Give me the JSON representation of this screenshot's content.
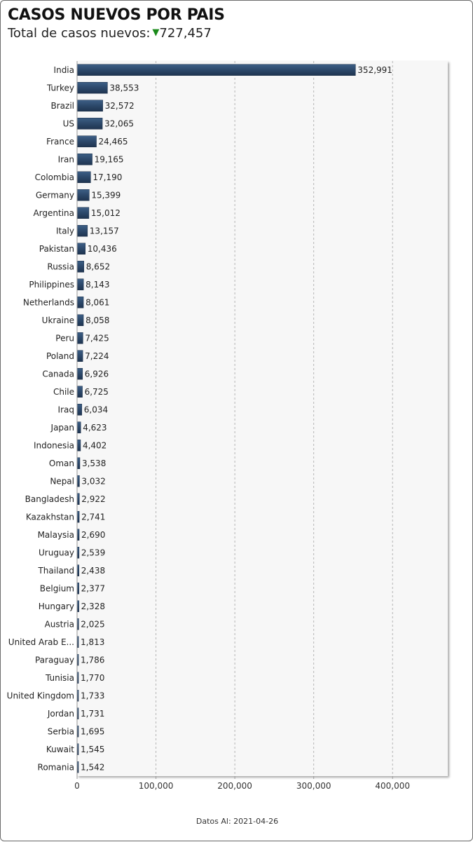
{
  "header": {
    "title": "CASOS NUEVOS POR PAIS",
    "subtitle_label": "Total de casos nuevos:",
    "total_new_cases": "727,457",
    "trend_icon": "triangle-down-icon",
    "trend_color": "#1a8a1a"
  },
  "footer": {
    "date_label": "Datos Al:",
    "date_value": "2021-04-26"
  },
  "chart_data": {
    "type": "bar",
    "orientation": "horizontal",
    "title": "",
    "xlabel": "",
    "ylabel": "",
    "xlim": [
      0,
      470000
    ],
    "x_ticks": [
      0,
      100000,
      200000,
      300000,
      400000
    ],
    "x_tick_labels": [
      "0",
      "100,000",
      "200,000",
      "300,000",
      "400,000"
    ],
    "grid": "vertical dashed",
    "bar_color": "#2e4a6b",
    "categories": [
      "India",
      "Turkey",
      "Brazil",
      "US",
      "France",
      "Iran",
      "Colombia",
      "Germany",
      "Argentina",
      "Italy",
      "Pakistan",
      "Russia",
      "Philippines",
      "Netherlands",
      "Ukraine",
      "Peru",
      "Poland",
      "Canada",
      "Chile",
      "Iraq",
      "Japan",
      "Indonesia",
      "Oman",
      "Nepal",
      "Bangladesh",
      "Kazakhstan",
      "Malaysia",
      "Uruguay",
      "Thailand",
      "Belgium",
      "Hungary",
      "Austria",
      "United Arab E...",
      "Paraguay",
      "Tunisia",
      "United Kingdom",
      "Jordan",
      "Serbia",
      "Kuwait",
      "Romania"
    ],
    "values": [
      352991,
      38553,
      32572,
      32065,
      24465,
      19165,
      17190,
      15399,
      15012,
      13157,
      10436,
      8652,
      8143,
      8061,
      8058,
      7425,
      7224,
      6926,
      6725,
      6034,
      4623,
      4402,
      3538,
      3032,
      2922,
      2741,
      2690,
      2539,
      2438,
      2377,
      2328,
      2025,
      1813,
      1786,
      1770,
      1733,
      1731,
      1695,
      1545,
      1542
    ],
    "value_labels": [
      "352,991",
      "38,553",
      "32,572",
      "32,065",
      "24,465",
      "19,165",
      "17,190",
      "15,399",
      "15,012",
      "13,157",
      "10,436",
      "8,652",
      "8,143",
      "8,061",
      "8,058",
      "7,425",
      "7,224",
      "6,926",
      "6,725",
      "6,034",
      "4,623",
      "4,402",
      "3,538",
      "3,032",
      "2,922",
      "2,741",
      "2,690",
      "2,539",
      "2,438",
      "2,377",
      "2,328",
      "2,025",
      "1,813",
      "1,786",
      "1,770",
      "1,733",
      "1,731",
      "1,695",
      "1,545",
      "1,542"
    ]
  }
}
